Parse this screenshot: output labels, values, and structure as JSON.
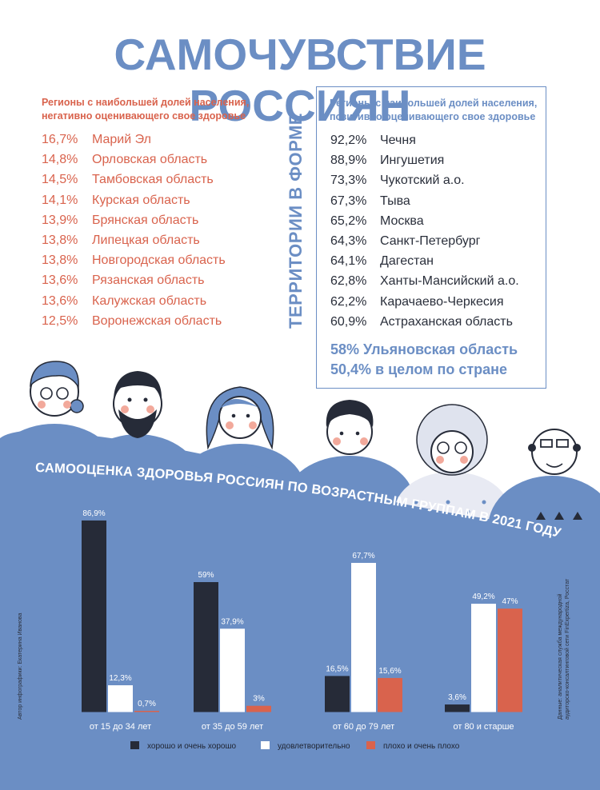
{
  "title": "САМОЧУВСТВИЕ РОССИЯН",
  "negative": {
    "heading": "Регионы с наибольшей долей населения, негативно оценивающего свое здоровье",
    "items": [
      {
        "pct": "16,7%",
        "region": "Марий Эл"
      },
      {
        "pct": "14,8%",
        "region": "Орловская область"
      },
      {
        "pct": "14,5%",
        "region": "Тамбовская область"
      },
      {
        "pct": "14,1%",
        "region": "Курская область"
      },
      {
        "pct": "13,9%",
        "region": "Брянская область"
      },
      {
        "pct": "13,8%",
        "region": "Липецкая область"
      },
      {
        "pct": "13,8%",
        "region": "Новгородская область"
      },
      {
        "pct": "13,6%",
        "region": "Рязанская область"
      },
      {
        "pct": "13,6%",
        "region": "Калужская область"
      },
      {
        "pct": "12,5%",
        "region": "Воронежская область"
      }
    ]
  },
  "vertical_title": "ТЕРРИТОРИИ В ФОРМЕ",
  "positive": {
    "heading": "Регионы с наибольшей долей населения, позитивно оценивающего свое здоровье",
    "items": [
      {
        "pct": "92,2%",
        "region": "Чечня"
      },
      {
        "pct": "88,9%",
        "region": "Ингушетия"
      },
      {
        "pct": "73,3%",
        "region": "Чукотский а.о."
      },
      {
        "pct": "67,3%",
        "region": "Тыва"
      },
      {
        "pct": "65,2%",
        "region": "Москва"
      },
      {
        "pct": "64,3%",
        "region": "Санкт-Петербург"
      },
      {
        "pct": "64,1%",
        "region": "Дагестан"
      },
      {
        "pct": "62,8%",
        "region": "Ханты-Мансийский а.о."
      },
      {
        "pct": "62,2%",
        "region": "Карачаево-Черкесия"
      },
      {
        "pct": "60,9%",
        "region": "Астраханская область"
      }
    ],
    "extra": [
      "58% Ульяновская область",
      "50,4% в целом по стране"
    ]
  },
  "credits": {
    "left": "Автор инфографики: Екатерина Иванова",
    "right_1": "Данные: аналитическая служба международной",
    "right_2": "аудиторско-консалтинговой сети FinExpertiza, Росстат"
  },
  "colors": {
    "accent_blue": "#6b8ec4",
    "dark": "#262b38",
    "white": "#ffffff",
    "red": "#d9634d"
  },
  "chart_data": {
    "type": "bar",
    "title": "САМООЦЕНКА ЗДОРОВЬЯ РОССИЯН ПО ВОЗРАСТНЫМ ГРУППАМ В 2021 ГОДУ",
    "categories": [
      "от 15 до 34 лет",
      "от 35 до 59 лет",
      "от 60 до 79 лет",
      "от 80 и старше"
    ],
    "series": [
      {
        "name": "хорошо и очень хорошо",
        "color": "#262b38",
        "values": [
          86.9,
          59,
          16.5,
          3.6
        ],
        "labels": [
          "86,9%",
          "59%",
          "16,5%",
          "3,6%"
        ]
      },
      {
        "name": "удовлетворительно",
        "color": "#ffffff",
        "values": [
          12.3,
          37.9,
          67.7,
          49.2
        ],
        "labels": [
          "12,3%",
          "37,9%",
          "67,7%",
          "49,2%"
        ]
      },
      {
        "name": "плохо и очень плохо",
        "color": "#d9634d",
        "values": [
          0.7,
          3,
          15.6,
          47
        ],
        "labels": [
          "0,7%",
          "3%",
          "15,6%",
          "47%"
        ]
      }
    ],
    "ylim": [
      0,
      100
    ],
    "grid": false,
    "legend": "bottom"
  }
}
